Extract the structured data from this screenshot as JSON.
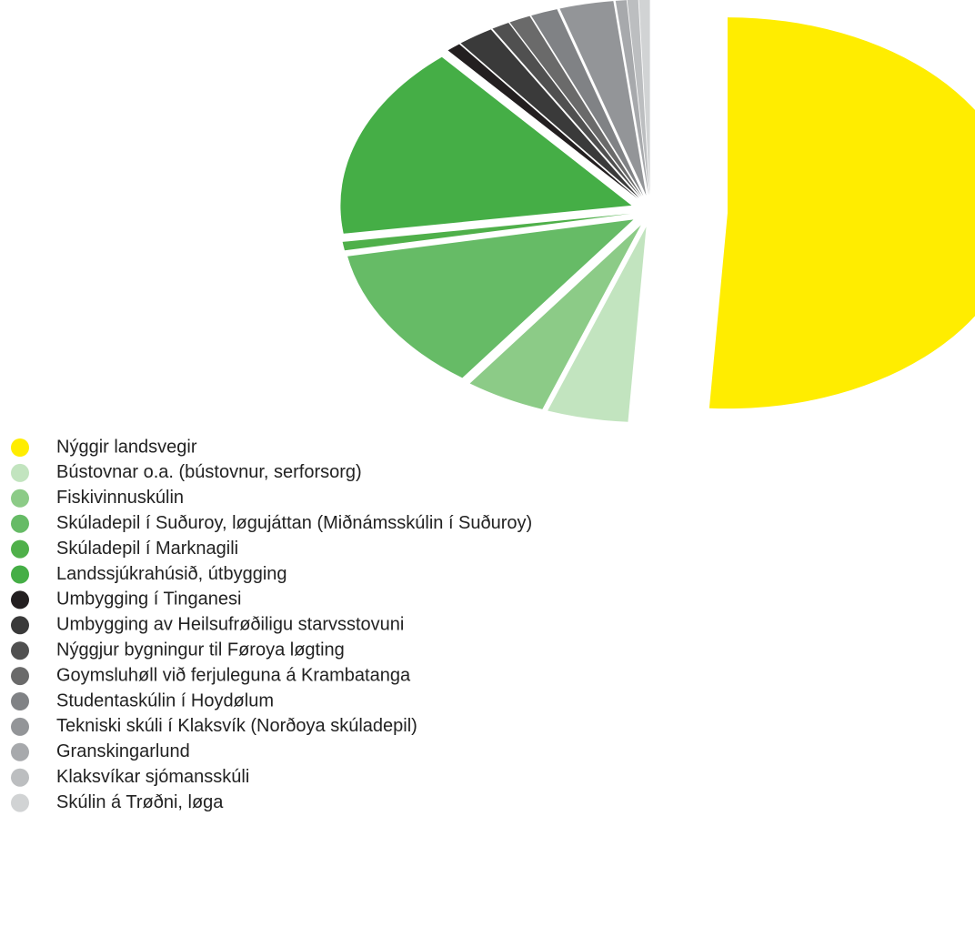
{
  "chart_data": {
    "type": "pie",
    "categories": [
      "Nýggir landsvegir",
      "Bústovnar o.a. (bústovnur, serforsorg)",
      "Fiskivinnuskúlin",
      "Skúladepil í Suðuroy, løgujáttan (Miðnámsskúlin í Suðuroy)",
      "Skúladepil í Marknagili",
      "Landssjúkrahúsið, útbygging",
      "Umbygging í Tinganesi",
      "Umbygging av Heilsufrøðiligu starvsstovuni",
      "Nýggjur bygningur til Føroya løgting",
      "Goymsluhøll við ferjuleguna á Krambatanga",
      "Studentaskúlin í Hoydølum",
      "Tekniski skúli í Klaksvík (Norðoya skúladepil)",
      "Granskingarlund",
      "Klaksvíkar sjómansskúli",
      "Skúlin á Trøðni, løga"
    ],
    "values": [
      51,
      4.5,
      4.5,
      12,
      0.7,
      16,
      0.8,
      2,
      1,
      1.2,
      1.5,
      3,
      0.6,
      0.6,
      0.6
    ],
    "colors": [
      "#ffed00",
      "#c2e4bf",
      "#8ccb87",
      "#66bb66",
      "#4fb04a",
      "#45ae46",
      "#231f20",
      "#3a3a3a",
      "#505050",
      "#6a6a6a",
      "#808285",
      "#939598",
      "#a7a9ac",
      "#bcbec0",
      "#d1d3d4"
    ]
  }
}
